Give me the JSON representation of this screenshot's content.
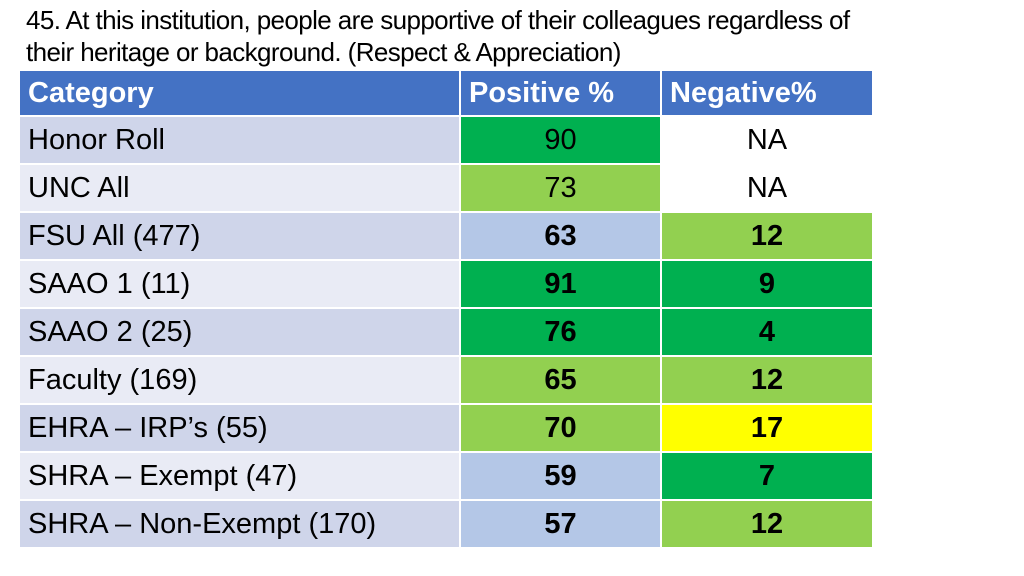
{
  "title": {
    "line1": "45. At this institution, people are supportive of their colleagues regardless of",
    "line2": "their heritage or background. (Respect & Appreciation)"
  },
  "table": {
    "headers": [
      "Category",
      "Positive %",
      "Negative%"
    ],
    "rows": [
      {
        "category": "Honor Roll",
        "positive": "90",
        "negative": "NA",
        "positive_color": "#00b050",
        "negative_color": "#ffffff"
      },
      {
        "category": "UNC All",
        "positive": "73",
        "negative": "NA",
        "positive_color": "#92d050",
        "negative_color": "#ffffff"
      },
      {
        "category": "FSU All (477)",
        "positive": "63",
        "negative": "12",
        "positive_color": "#b4c7e7",
        "negative_color": "#92d050"
      },
      {
        "category": "SAAO 1 (11)",
        "positive": "91",
        "negative": "9",
        "positive_color": "#00b050",
        "negative_color": "#00b050"
      },
      {
        "category": "SAAO 2 (25)",
        "positive": "76",
        "negative": "4",
        "positive_color": "#00b050",
        "negative_color": "#00b050"
      },
      {
        "category": "Faculty (169)",
        "positive": "65",
        "negative": "12",
        "positive_color": "#92d050",
        "negative_color": "#92d050"
      },
      {
        "category": "EHRA – IRP’s (55)",
        "positive": "70",
        "negative": "17",
        "positive_color": "#92d050",
        "negative_color": "#ffff00"
      },
      {
        "category": "SHRA – Exempt (47)",
        "positive": "59",
        "negative": "7",
        "positive_color": "#b4c7e7",
        "negative_color": "#00b050"
      },
      {
        "category": "SHRA – Non-Exempt (170)",
        "positive": "57",
        "negative": "12",
        "positive_color": "#b4c7e7",
        "negative_color": "#92d050"
      }
    ]
  }
}
